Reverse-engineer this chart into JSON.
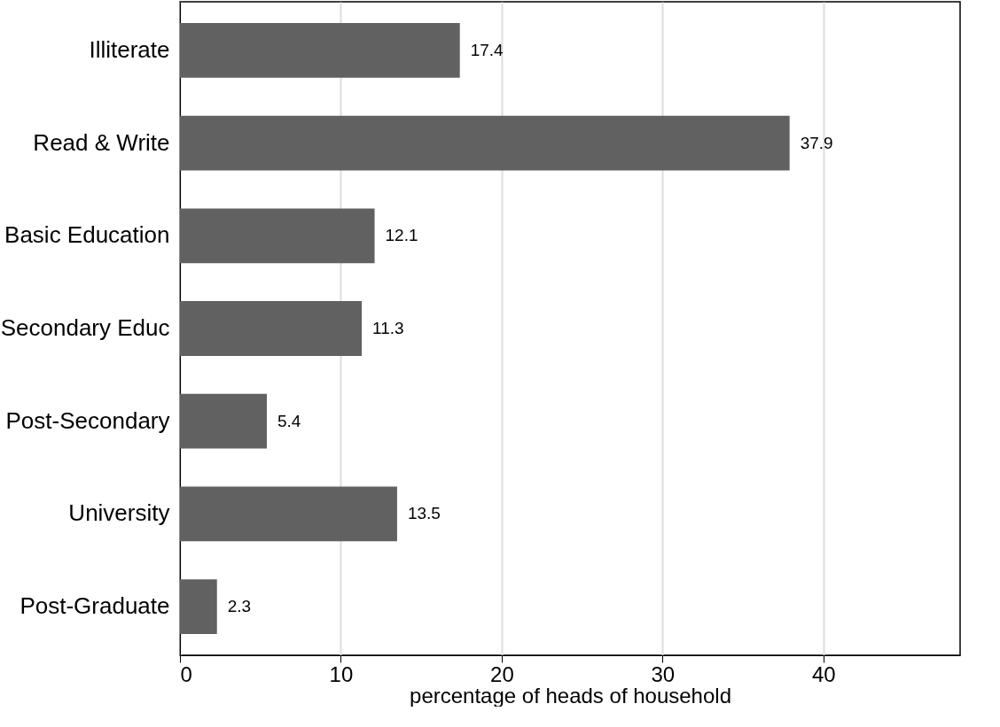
{
  "chart_data": {
    "type": "bar",
    "orientation": "horizontal",
    "xlabel": "percentage of heads of household",
    "categories": [
      "Illiterate",
      "Read & Write",
      "Basic Education",
      "Secondary Educ",
      "Post-Secondary",
      "University",
      "Post-Graduate"
    ],
    "values": [
      17.4,
      37.9,
      12.1,
      11.3,
      5.4,
      13.5,
      2.3
    ],
    "color": "#616161",
    "xlim": [
      0,
      48.5
    ],
    "xticks": [
      0,
      10,
      20,
      30,
      40
    ],
    "grid": "x",
    "data_labels": true
  }
}
